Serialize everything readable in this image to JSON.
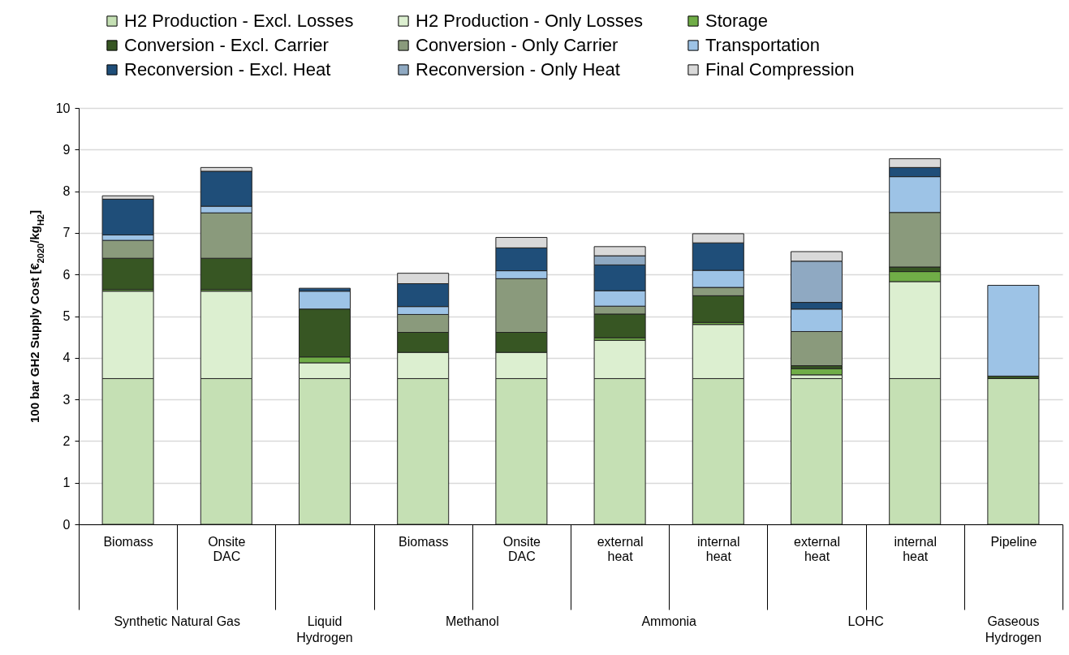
{
  "chart_data": {
    "type": "bar",
    "stacked": true,
    "ylabel": "100 bar GH2 Supply Cost [€$_{2020}$/kg$_{H2}$]",
    "categories": [
      "Biomass",
      "Onsite DAC",
      null,
      "Biomass",
      "Onsite DAC",
      "external heat",
      "internal heat",
      "external heat",
      "internal heat",
      "Pipeline"
    ],
    "annotations": [
      "Synthetic Natural Gas",
      "Liquid Hydrogen",
      "Methanol",
      "Ammonia",
      "LOHC",
      "Gaseous Hydrogen"
    ],
    "ylim": [
      0,
      10
    ],
    "yticks": [
      0,
      1,
      2,
      3,
      4,
      5,
      6,
      7,
      8,
      9,
      10
    ],
    "grid": "y",
    "legend": "top",
    "series": [
      {
        "name": "H2 Production - Excl. Losses",
        "color": "#c5e0b4",
        "values": [
          3.5,
          3.5,
          3.5,
          3.5,
          3.5,
          3.5,
          3.5,
          3.5,
          3.5,
          3.5
        ]
      },
      {
        "name": "H2 Production - Only Losses",
        "color": "#dcefd0",
        "values": [
          2.1,
          2.1,
          0.38,
          0.63,
          0.63,
          0.92,
          1.3,
          0.09,
          2.33,
          0
        ]
      },
      {
        "name": "Storage",
        "color": "#70ad47",
        "values": [
          0.04,
          0.04,
          0.14,
          0,
          0,
          0.06,
          0.05,
          0.15,
          0.24,
          0
        ]
      },
      {
        "name": "Conversion - Excl. Carrier",
        "color": "#375623",
        "values": [
          0.75,
          0.75,
          1.15,
          0.48,
          0.48,
          0.57,
          0.64,
          0.07,
          0.11,
          0.06
        ]
      },
      {
        "name": "Conversion - Only Carrier",
        "color": "#8a9a7c",
        "values": [
          0.43,
          1.09,
          0,
          0.43,
          1.29,
          0.19,
          0.2,
          0.82,
          1.31,
          0
        ]
      },
      {
        "name": "Transportation",
        "color": "#9dc3e6",
        "values": [
          0.13,
          0.16,
          0.43,
          0.19,
          0.19,
          0.37,
          0.41,
          0.54,
          0.86,
          2.18
        ]
      },
      {
        "name": "Reconversion - Excl. Heat",
        "color": "#1f4e79",
        "values": [
          0.86,
          0.84,
          0.07,
          0.55,
          0.55,
          0.62,
          0.66,
          0.16,
          0.22,
          0
        ]
      },
      {
        "name": "Reconversion - Only Heat",
        "color": "#8fa9c2",
        "values": [
          0,
          0,
          0,
          0,
          0,
          0.22,
          0,
          0.99,
          0,
          0
        ]
      },
      {
        "name": "Final Compression",
        "color": "#d9d9d9",
        "values": [
          0.08,
          0.09,
          0,
          0.25,
          0.25,
          0.22,
          0.22,
          0.23,
          0.21,
          0
        ]
      }
    ]
  }
}
